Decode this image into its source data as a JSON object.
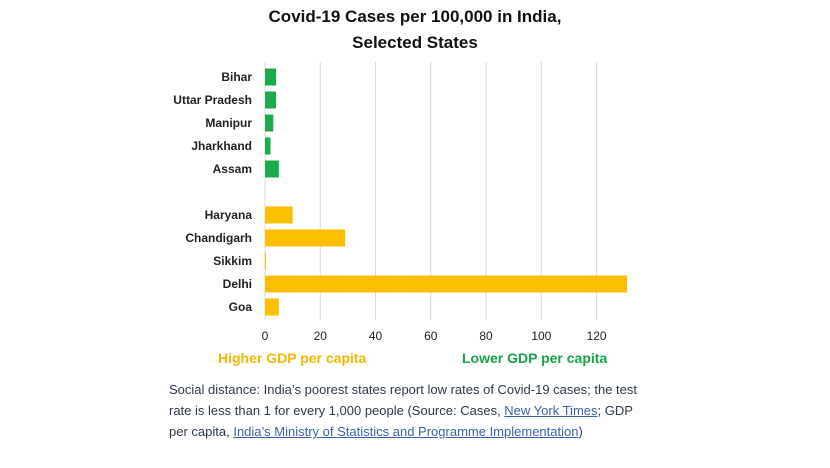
{
  "chart_data": {
    "type": "bar",
    "orientation": "horizontal",
    "title_lines": [
      "Covid-19 Cases per 100,000 in India,",
      "Selected States"
    ],
    "groups": [
      {
        "name": "Lower GDP per capita",
        "color": "#1aab4c",
        "categories": [
          "Bihar",
          "Uttar Pradesh",
          "Manipur",
          "Jharkhand",
          "Assam"
        ],
        "values": [
          4,
          4,
          3,
          2,
          5
        ]
      },
      {
        "name": "Higher GDP per capita",
        "color": "#fcc000",
        "categories": [
          "Haryana",
          "Chandigarh",
          "Sikkim",
          "Delhi",
          "Goa"
        ],
        "values": [
          10,
          29,
          0.3,
          131,
          5
        ]
      }
    ],
    "xlim": [
      0,
      131
    ],
    "xticks": [
      0,
      20,
      40,
      60,
      80,
      100,
      120
    ],
    "grid": true,
    "legend": {
      "high_label": "Higher GDP per capita",
      "high_color": "#f5b700",
      "low_label": "Lower GDP per capita",
      "low_color": "#16a34a"
    }
  },
  "caption": {
    "text1": "Social distance: India’s poorest states report low rates of Covid-19 cases; the test rate is less than 1 for every 1,000 people (Source: Cases, ",
    "link1": "New York Times",
    "text2": "; GDP per capita, ",
    "link2": "India’s Ministry of Statistics and Programme Implementation",
    "text3": ")"
  }
}
